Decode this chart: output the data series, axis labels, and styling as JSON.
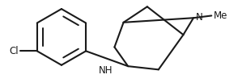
{
  "bg_color": "#ffffff",
  "line_color": "#1a1a1a",
  "line_width": 1.5,
  "font_size": 8.5,
  "Cl_label": "Cl",
  "NH_label": "NH",
  "N_label": "N",
  "Me_label": "Me",
  "figsize": [
    2.94,
    1.03
  ],
  "dpi": 100,
  "xlim": [
    0,
    10.5
  ],
  "ylim": [
    0,
    3.6
  ]
}
